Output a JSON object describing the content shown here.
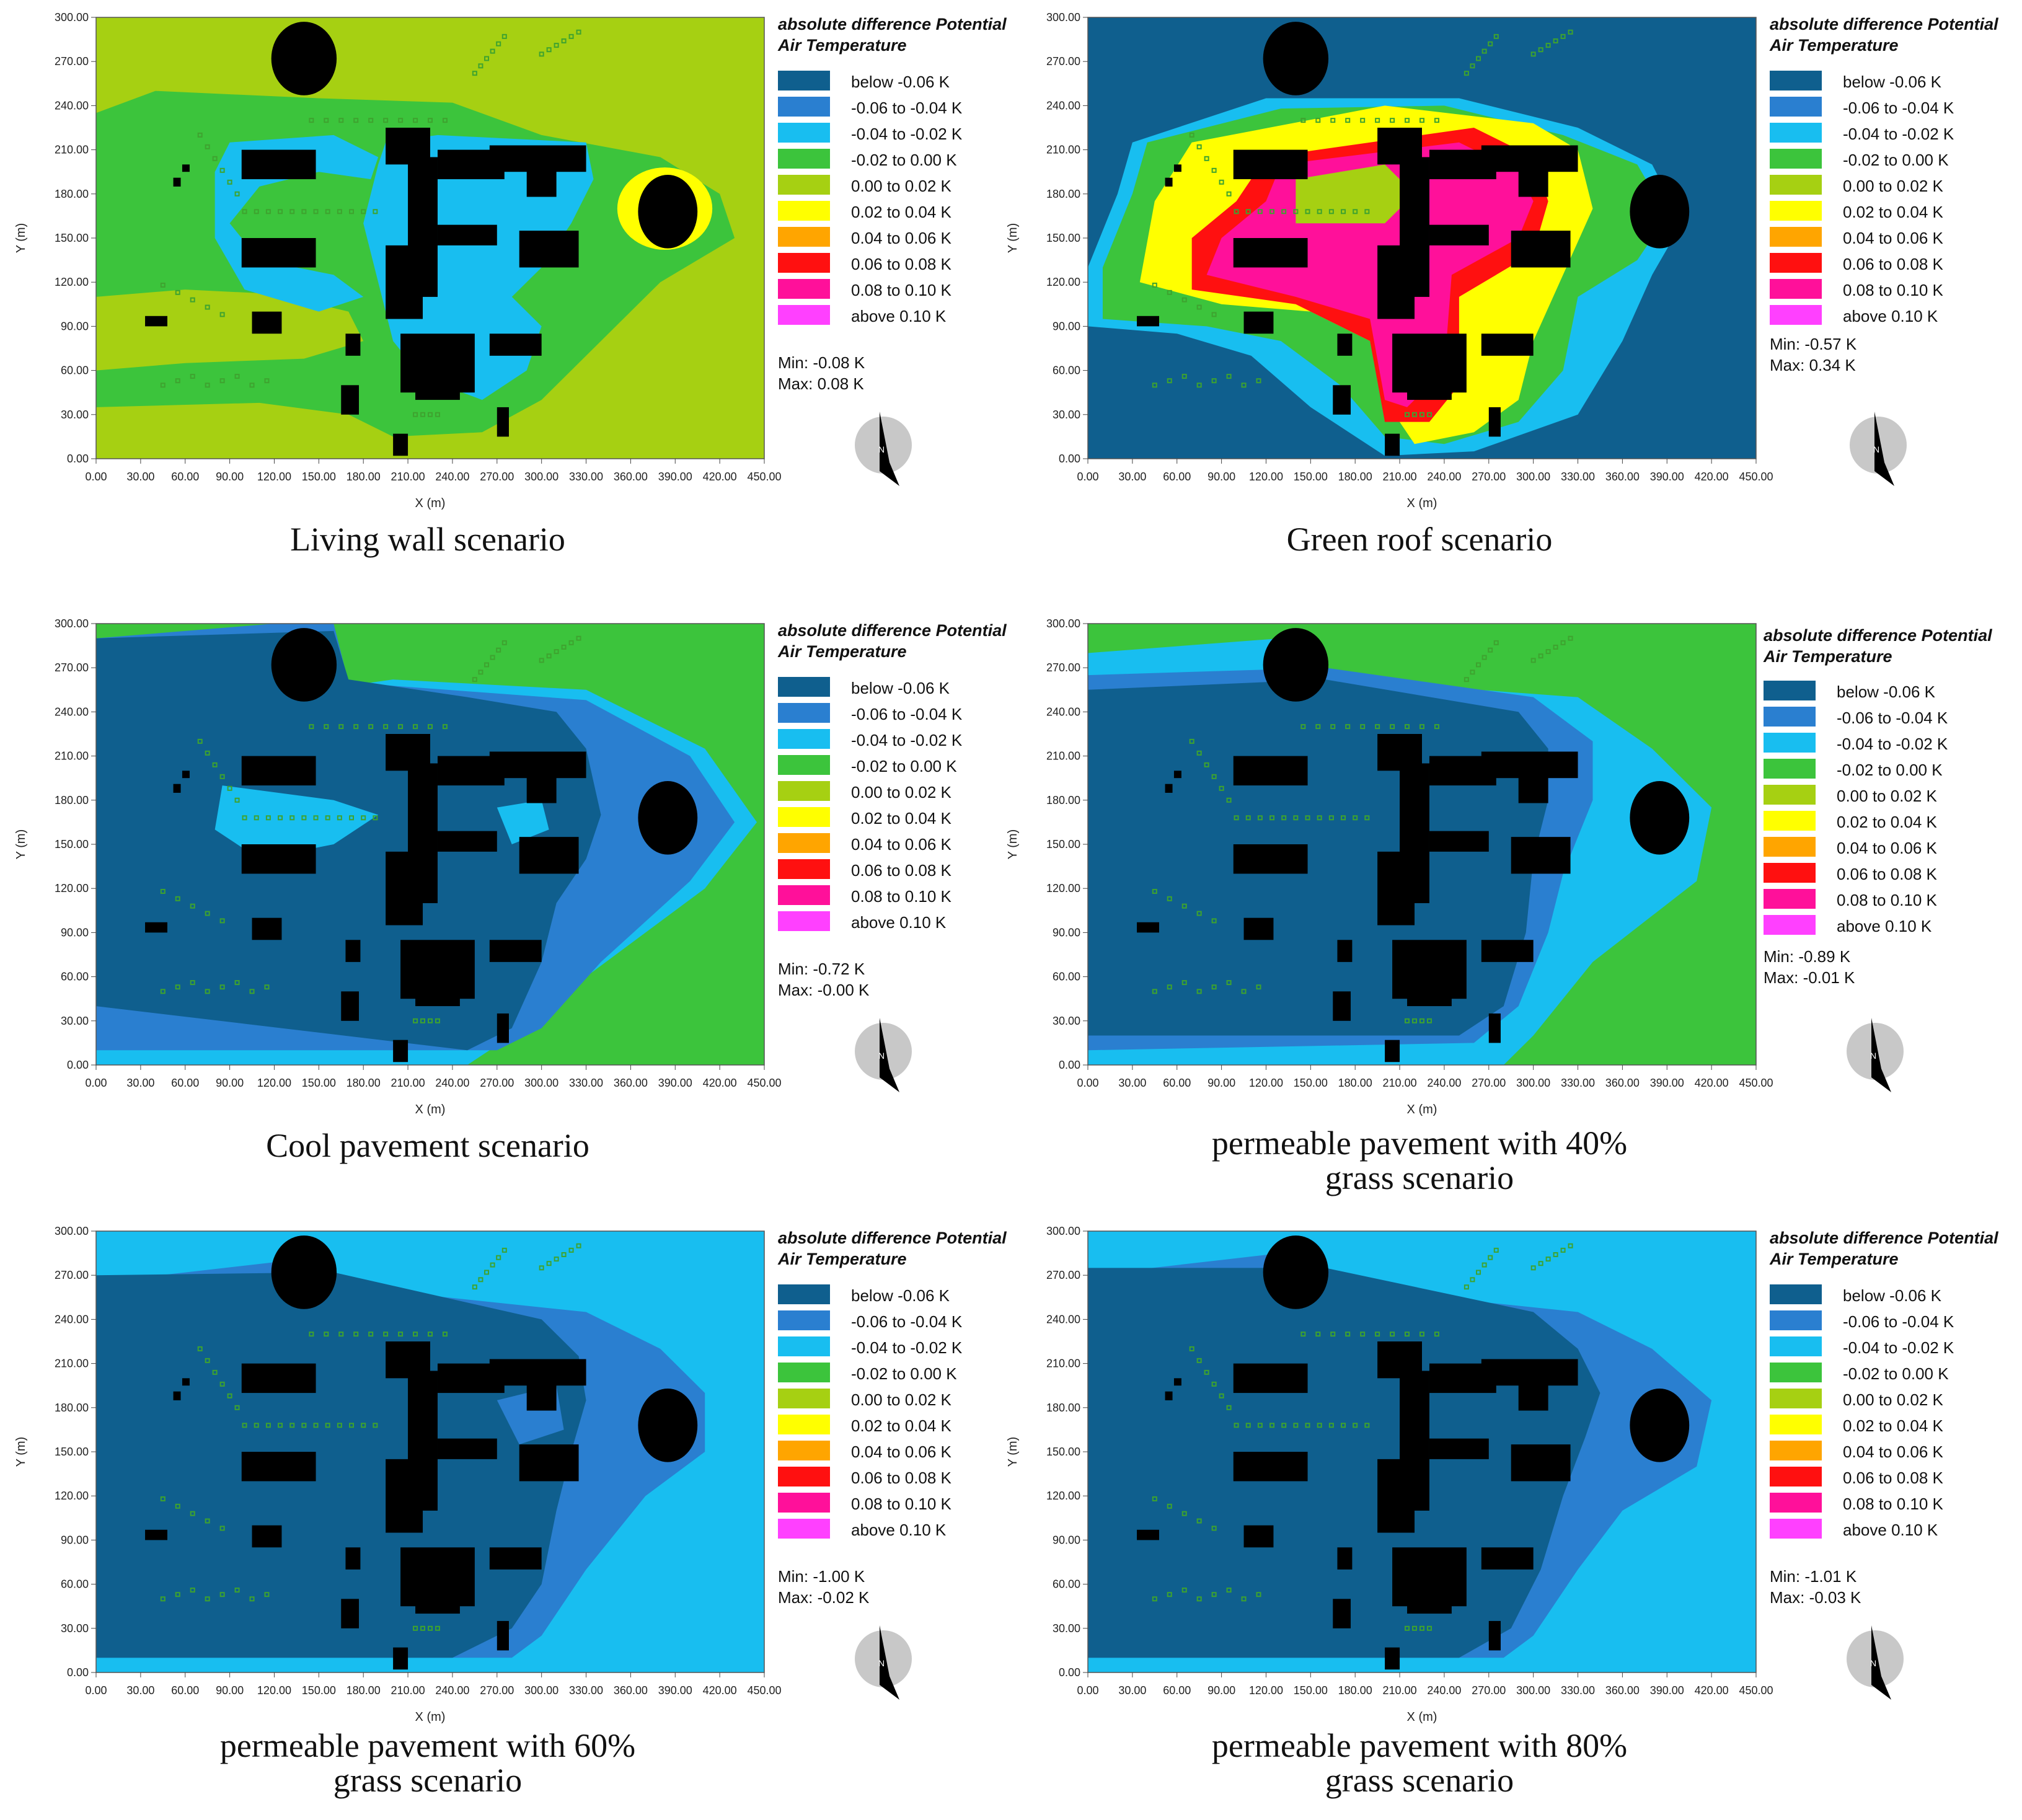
{
  "legend_title": "absolute difference Potential\nAir Temperature",
  "legend_items": [
    {
      "label": "below -0.06 K",
      "color": "#0f5f8e"
    },
    {
      "label": "-0.06 to -0.04 K",
      "color": "#2a7fd0"
    },
    {
      "label": "-0.04 to -0.02 K",
      "color": "#18bef0"
    },
    {
      "label": "-0.02 to 0.00 K",
      "color": "#3cc43c"
    },
    {
      "label": "0.00 to 0.02 K",
      "color": "#a6d012"
    },
    {
      "label": "0.02 to 0.04 K",
      "color": "#ffff00"
    },
    {
      "label": "0.04 to 0.06 K",
      "color": "#ffa500"
    },
    {
      "label": "0.06 to 0.08 K",
      "color": "#ff1010"
    },
    {
      "label": "0.08 to 0.10 K",
      "color": "#ff109a"
    },
    {
      "label": "above 0.10 K",
      "color": "#ff40ff"
    }
  ],
  "axis": {
    "xlabel": "X (m)",
    "ylabel": "Y (m)",
    "xticks": [
      "0.00",
      "30.00",
      "60.00",
      "90.00",
      "120.00",
      "150.00",
      "180.00",
      "210.00",
      "240.00",
      "270.00",
      "300.00",
      "330.00",
      "360.00",
      "390.00",
      "420.00",
      "450.00"
    ],
    "yticks": [
      "300.00",
      "270.00",
      "240.00",
      "210.00",
      "180.00",
      "150.00",
      "120.00",
      "90.00",
      "60.00",
      "30.00",
      "0.00"
    ]
  },
  "north_label": "N",
  "chart_data": [
    {
      "type": "heatmap",
      "title": "Living wall scenario",
      "xlabel": "X (m)",
      "ylabel": "Y (m)",
      "xlim": [
        0,
        450
      ],
      "ylim": [
        0,
        300
      ],
      "min_text": "Min: -0.08 K",
      "max_text": "Max: 0.08 K",
      "min": -0.08,
      "max": 0.08,
      "background_class": "0.00 to 0.02 K",
      "caption": [
        "Living wall scenario"
      ]
    },
    {
      "type": "heatmap",
      "title": "Green roof scenario",
      "xlabel": "X (m)",
      "ylabel": "Y (m)",
      "xlim": [
        0,
        450
      ],
      "ylim": [
        0,
        300
      ],
      "min_text": "Min: -0.57 K",
      "max_text": "Max: 0.34 K",
      "min": -0.57,
      "max": 0.34,
      "background_class": "below -0.06 K",
      "caption": [
        "Green roof scenario"
      ]
    },
    {
      "type": "heatmap",
      "title": "Cool pavement scenario",
      "xlabel": "X (m)",
      "ylabel": "Y (m)",
      "xlim": [
        0,
        450
      ],
      "ylim": [
        0,
        300
      ],
      "min_text": "Min: -0.72 K",
      "max_text": "Max: -0.00 K",
      "min": -0.72,
      "max": -0.0,
      "background_class": "below -0.06 K",
      "caption": [
        "Cool pavement scenario"
      ]
    },
    {
      "type": "heatmap",
      "title": "permeable pavement with 40% grass scenario",
      "xlabel": "X (m)",
      "ylabel": "Y (m)",
      "xlim": [
        0,
        450
      ],
      "ylim": [
        0,
        300
      ],
      "min_text": "Min: -0.89 K",
      "max_text": "Max: -0.01 K",
      "min": -0.89,
      "max": -0.01,
      "background_class": "below -0.06 K",
      "caption": [
        "permeable pavement with 40%",
        "grass scenario"
      ]
    },
    {
      "type": "heatmap",
      "title": "permeable pavement with 60% grass scenario",
      "xlabel": "X (m)",
      "ylabel": "Y (m)",
      "xlim": [
        0,
        450
      ],
      "ylim": [
        0,
        300
      ],
      "min_text": "Min: -1.00 K",
      "max_text": "Max: -0.02 K",
      "min": -1.0,
      "max": -0.02,
      "background_class": "below -0.06 K",
      "caption": [
        "permeable pavement with 60%",
        "grass scenario"
      ]
    },
    {
      "type": "heatmap",
      "title": "permeable pavement with 80% grass scenario",
      "xlabel": "X (m)",
      "ylabel": "Y (m)",
      "xlim": [
        0,
        450
      ],
      "ylim": [
        0,
        300
      ],
      "min_text": "Min: -1.01 K",
      "max_text": "Max: -0.03 K",
      "min": -1.01,
      "max": -0.03,
      "background_class": "below -0.06 K",
      "caption": [
        "permeable pavement with 80%",
        "grass scenario"
      ]
    }
  ]
}
